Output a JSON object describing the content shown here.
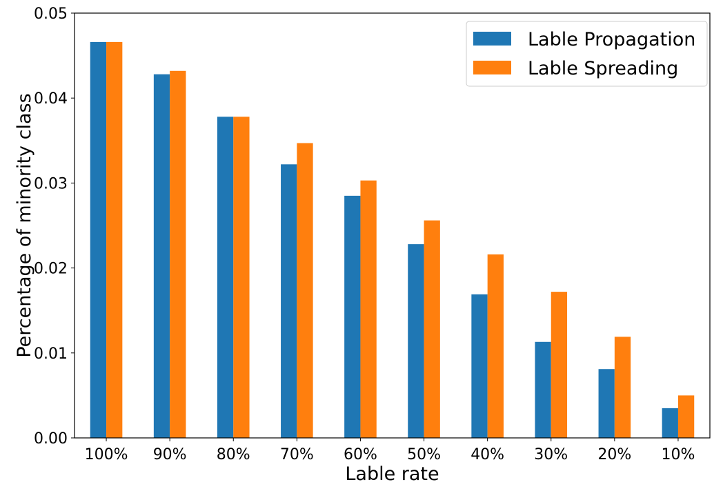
{
  "chart_data": {
    "type": "bar",
    "title": "",
    "xlabel": "Lable rate",
    "ylabel": "Percentage of minority class",
    "categories": [
      "100%",
      "90%",
      "80%",
      "70%",
      "60%",
      "50%",
      "40%",
      "30%",
      "20%",
      "10%"
    ],
    "series": [
      {
        "name": "Lable Propagation",
        "color": "#1f77b4",
        "values": [
          0.0466,
          0.0428,
          0.0378,
          0.0322,
          0.0285,
          0.0228,
          0.0169,
          0.0113,
          0.0081,
          0.0035
        ]
      },
      {
        "name": "Lable Spreading",
        "color": "#ff7f0e",
        "values": [
          0.0466,
          0.0432,
          0.0378,
          0.0347,
          0.0303,
          0.0256,
          0.0216,
          0.0172,
          0.0119,
          0.005
        ]
      }
    ],
    "ylim": [
      0,
      0.05
    ],
    "yticks": [
      "0.00",
      "0.01",
      "0.02",
      "0.03",
      "0.04",
      "0.05"
    ],
    "ytick_values": [
      0,
      0.01,
      0.02,
      0.03,
      0.04,
      0.05
    ],
    "grid": false,
    "legend_position": "top-right"
  }
}
